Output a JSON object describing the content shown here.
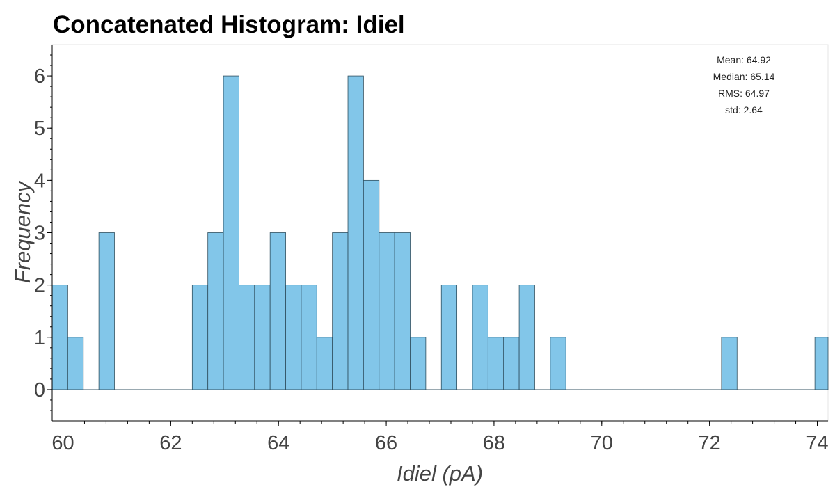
{
  "chart_data": {
    "type": "bar",
    "title": "Concatenated Histogram: Idiel",
    "xlabel": "Idiel (pA)",
    "ylabel": "Frequency",
    "xlim": [
      59.8,
      74.2
    ],
    "ylim": [
      -0.6,
      6.6
    ],
    "xticks": [
      60,
      62,
      64,
      66,
      68,
      70,
      72,
      74
    ],
    "yticks": [
      0,
      1,
      2,
      3,
      4,
      5,
      6
    ],
    "bin_start": 59.8,
    "bin_width": 0.2889,
    "counts": [
      2,
      1,
      0,
      3,
      0,
      0,
      0,
      0,
      0,
      2,
      3,
      6,
      2,
      2,
      3,
      2,
      2,
      1,
      3,
      6,
      4,
      3,
      3,
      1,
      0,
      2,
      0,
      2,
      1,
      1,
      2,
      0,
      1,
      0,
      0,
      0,
      0,
      0,
      0,
      0,
      0,
      0,
      0,
      1,
      0,
      0,
      0,
      0,
      0,
      1
    ],
    "bar_color": "#82c6e9",
    "bar_edge_color": "#2f4f5f",
    "grid": false,
    "stats": [
      {
        "label": "Mean: 64.92"
      },
      {
        "label": "Median: 65.14"
      },
      {
        "label": "RMS: 64.97"
      },
      {
        "label": "std: 2.64"
      }
    ]
  }
}
